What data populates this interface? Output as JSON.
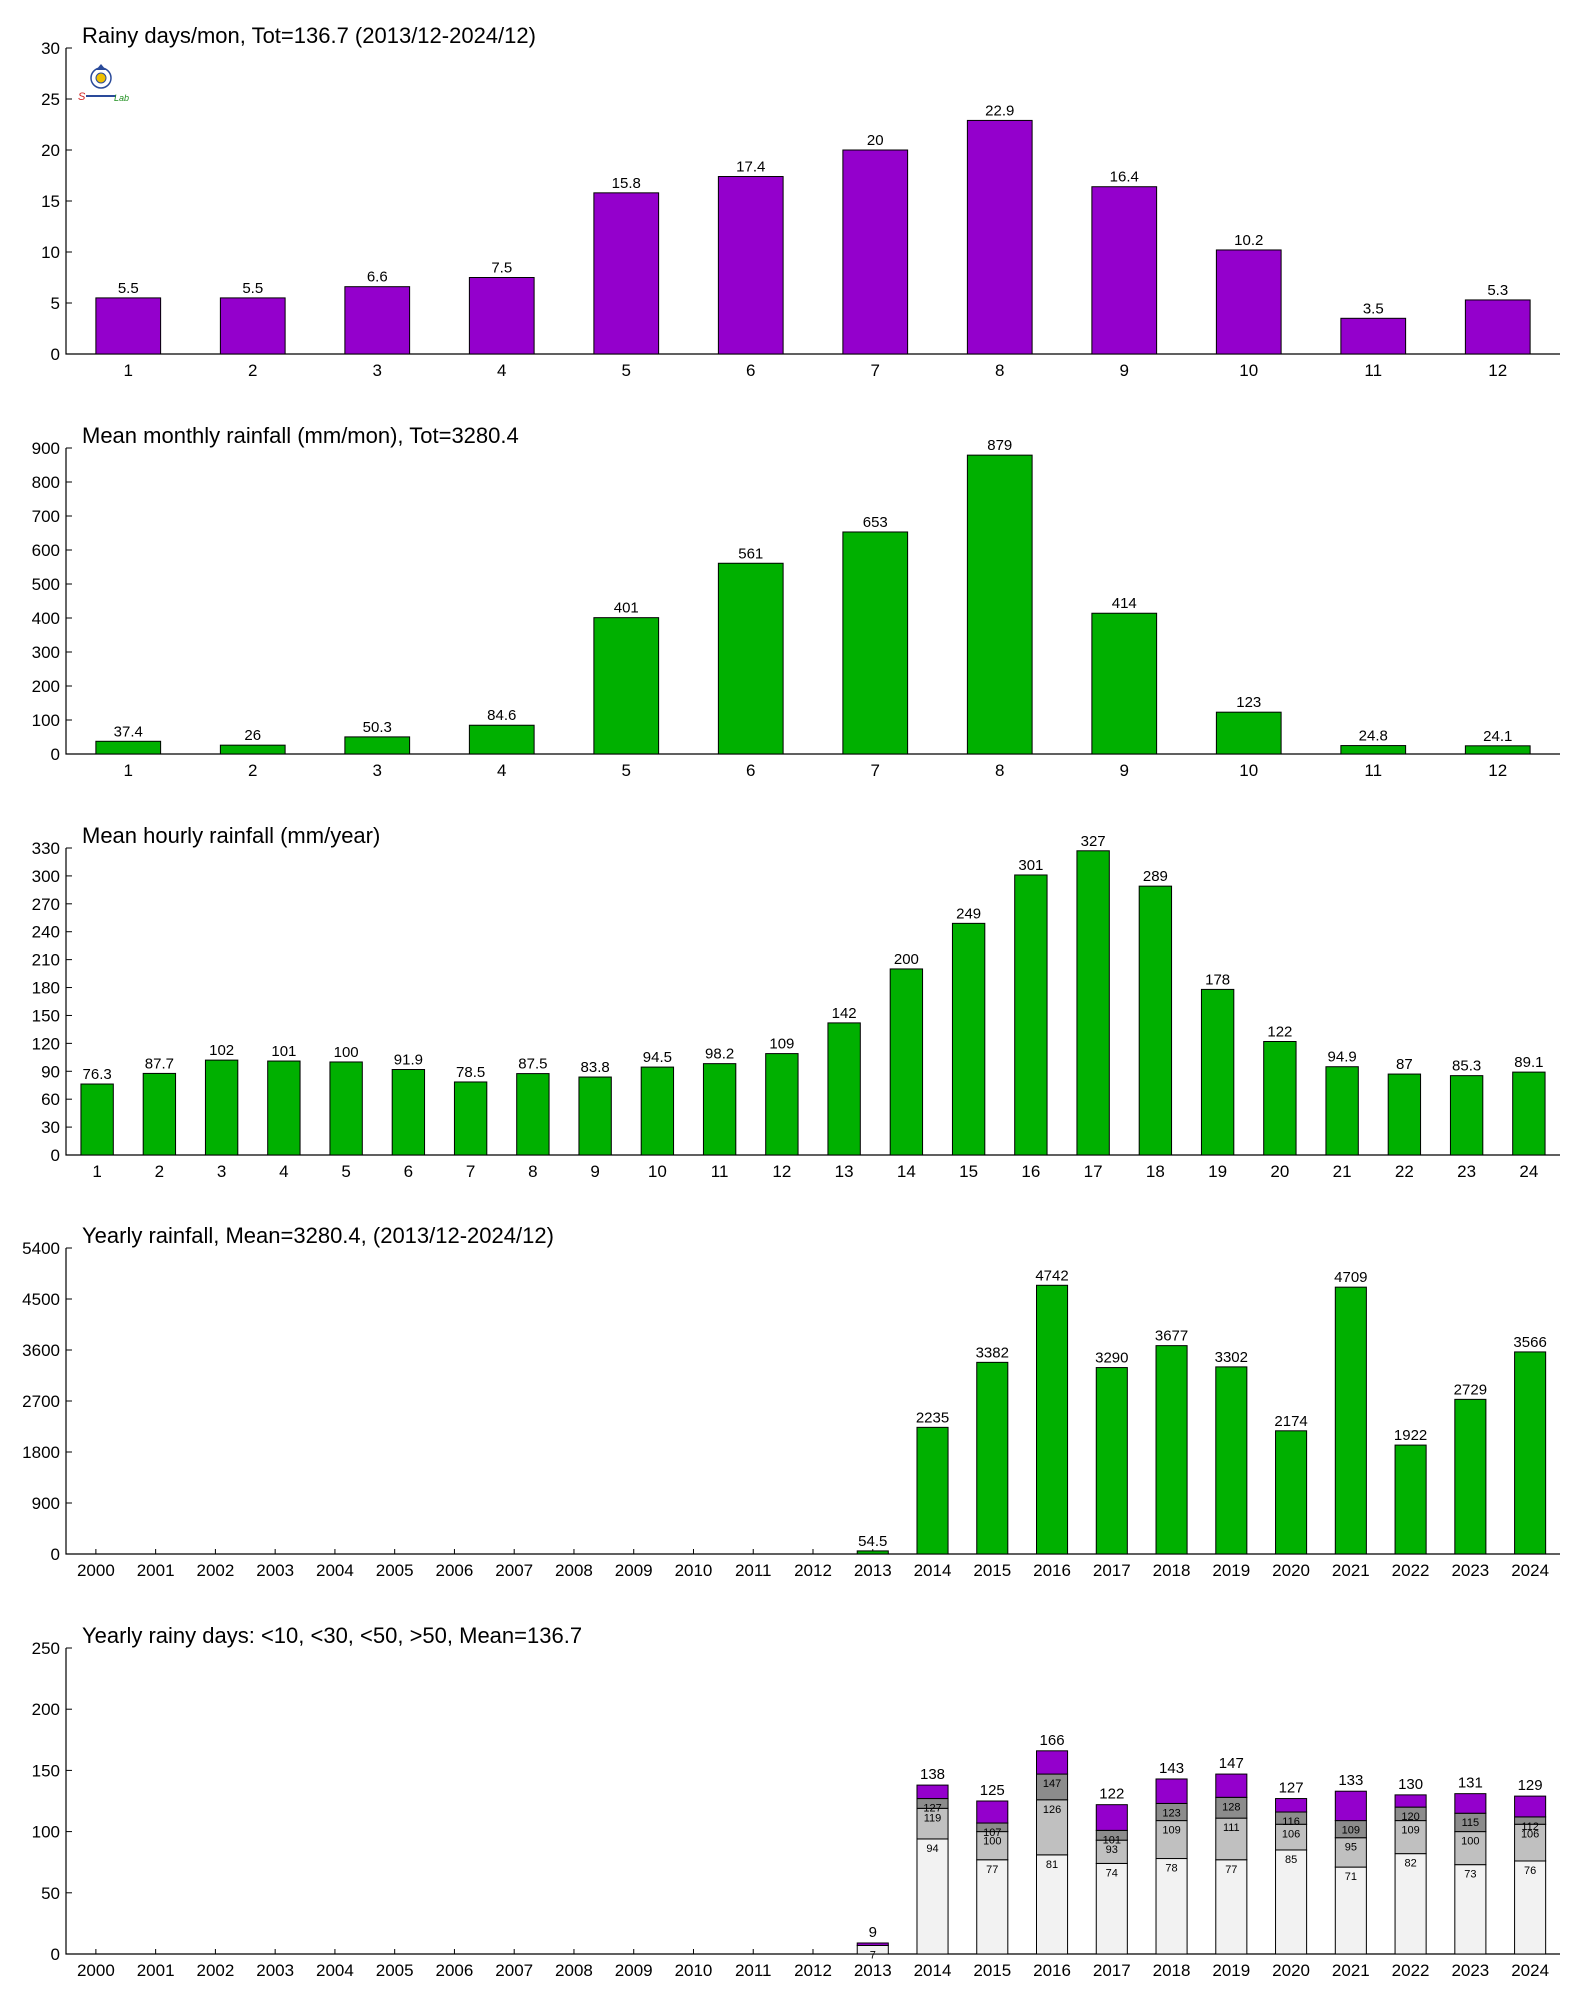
{
  "logo": {
    "text": "Sm Lab"
  },
  "colors": {
    "purple": "#9400cc",
    "green": "#00b000",
    "stack": [
      "#f2f2f2",
      "#c0c0c0",
      "#8c8c8c",
      "#9400cc"
    ]
  },
  "chart_data": [
    {
      "type": "bar",
      "title": "Rainy days/mon, Tot=136.7 (2013/12-2024/12)",
      "color": "#9400cc",
      "categories": [
        "1",
        "2",
        "3",
        "4",
        "5",
        "6",
        "7",
        "8",
        "9",
        "10",
        "11",
        "12"
      ],
      "values": [
        5.5,
        5.5,
        6.6,
        7.5,
        15.8,
        17.4,
        20,
        22.9,
        16.4,
        10.2,
        3.5,
        5.3
      ],
      "labels": [
        "5.5",
        "5.5",
        "6.6",
        "7.5",
        "15.8",
        "17.4",
        "20",
        "22.9",
        "16.4",
        "10.2",
        "3.5",
        "5.3"
      ],
      "yticks": [
        0,
        5,
        10,
        15,
        20,
        25,
        30
      ],
      "ylim": [
        0,
        30
      ]
    },
    {
      "type": "bar",
      "title": "Mean monthly rainfall (mm/mon), Tot=3280.4",
      "color": "#00b000",
      "categories": [
        "1",
        "2",
        "3",
        "4",
        "5",
        "6",
        "7",
        "8",
        "9",
        "10",
        "11",
        "12"
      ],
      "values": [
        37.4,
        26,
        50.3,
        84.6,
        401,
        561,
        653,
        879,
        414,
        123,
        24.8,
        24.1
      ],
      "labels": [
        "37.4",
        "26",
        "50.3",
        "84.6",
        "401",
        "561",
        "653",
        "879",
        "414",
        "123",
        "24.8",
        "24.1"
      ],
      "yticks": [
        0,
        100,
        200,
        300,
        400,
        500,
        600,
        700,
        800,
        900
      ],
      "ylim": [
        0,
        900
      ]
    },
    {
      "type": "bar",
      "title": "Mean hourly rainfall (mm/year)",
      "color": "#00b000",
      "categories": [
        "1",
        "2",
        "3",
        "4",
        "5",
        "6",
        "7",
        "8",
        "9",
        "10",
        "11",
        "12",
        "13",
        "14",
        "15",
        "16",
        "17",
        "18",
        "19",
        "20",
        "21",
        "22",
        "23",
        "24"
      ],
      "values": [
        76.3,
        87.7,
        102,
        101,
        100,
        91.9,
        78.5,
        87.5,
        83.8,
        94.5,
        98.2,
        109,
        142,
        200,
        249,
        301,
        327,
        289,
        178,
        122,
        94.9,
        87,
        85.3,
        89.1
      ],
      "labels": [
        "76.3",
        "87.7",
        "102",
        "101",
        "100",
        "91.9",
        "78.5",
        "87.5",
        "83.8",
        "94.5",
        "98.2",
        "109",
        "142",
        "200",
        "249",
        "301",
        "327",
        "289",
        "178",
        "122",
        "94.9",
        "87",
        "85.3",
        "89.1"
      ],
      "yticks": [
        0,
        30,
        60,
        90,
        120,
        150,
        180,
        210,
        240,
        270,
        300,
        330
      ],
      "ylim": [
        0,
        330
      ]
    },
    {
      "type": "bar",
      "title": "Yearly rainfall, Mean=3280.4, (2013/12-2024/12)",
      "color": "#00b000",
      "categories": [
        "2000",
        "2001",
        "2002",
        "2003",
        "2004",
        "2005",
        "2006",
        "2007",
        "2008",
        "2009",
        "2010",
        "2011",
        "2012",
        "2013",
        "2014",
        "2015",
        "2016",
        "2017",
        "2018",
        "2019",
        "2020",
        "2021",
        "2022",
        "2023",
        "2024"
      ],
      "values": [
        null,
        null,
        null,
        null,
        null,
        null,
        null,
        null,
        null,
        null,
        null,
        null,
        null,
        54.5,
        2235,
        3382,
        4742,
        3290,
        3677,
        3302,
        2174,
        4709,
        1922,
        2729,
        3566
      ],
      "labels": [
        "",
        "",
        "",
        "",
        "",
        "",
        "",
        "",
        "",
        "",
        "",
        "",
        "",
        "54.5",
        "2235",
        "3382",
        "4742",
        "3290",
        "3677",
        "3302",
        "2174",
        "4709",
        "1922",
        "2729",
        "3566"
      ],
      "yticks": [
        0,
        900,
        1800,
        2700,
        3600,
        4500,
        5400
      ],
      "ylim": [
        0,
        5400
      ]
    },
    {
      "type": "bar",
      "stacked": true,
      "title": "Yearly rainy days: <10, <30, <50, >50, Mean=136.7",
      "categories": [
        "2000",
        "2001",
        "2002",
        "2003",
        "2004",
        "2005",
        "2006",
        "2007",
        "2008",
        "2009",
        "2010",
        "2011",
        "2012",
        "2013",
        "2014",
        "2015",
        "2016",
        "2017",
        "2018",
        "2019",
        "2020",
        "2021",
        "2022",
        "2023",
        "2024"
      ],
      "stack_levels": [
        [
          null,
          null,
          null,
          null,
          null,
          null,
          null,
          null,
          null,
          null,
          null,
          null,
          null,
          7,
          94,
          77,
          81,
          74,
          78,
          77,
          85,
          71,
          82,
          73,
          76
        ],
        [
          null,
          null,
          null,
          null,
          null,
          null,
          null,
          null,
          null,
          null,
          null,
          null,
          null,
          7,
          119,
          100,
          126,
          93,
          109,
          111,
          106,
          95,
          109,
          100,
          106
        ],
        [
          null,
          null,
          null,
          null,
          null,
          null,
          null,
          null,
          null,
          null,
          null,
          null,
          null,
          7,
          127,
          107,
          147,
          101,
          123,
          128,
          116,
          109,
          120,
          115,
          112
        ],
        [
          null,
          null,
          null,
          null,
          null,
          null,
          null,
          null,
          null,
          null,
          null,
          null,
          null,
          9,
          138,
          125,
          166,
          122,
          143,
          147,
          127,
          133,
          130,
          131,
          129
        ]
      ],
      "inner_labels": [
        [
          "",
          "",
          "",
          "",
          "",
          "",
          "",
          "",
          "",
          "",
          "",
          "",
          "",
          "7",
          "94",
          "77",
          "81",
          "74",
          "78",
          "77",
          "85",
          "71",
          "82",
          "73",
          "76"
        ],
        [
          "",
          "",
          "",
          "",
          "",
          "",
          "",
          "",
          "",
          "",
          "",
          "",
          "",
          "",
          "119",
          "100",
          "126",
          "93",
          "109",
          "111",
          "106",
          "95",
          "109",
          "100",
          "106"
        ],
        [
          "",
          "",
          "",
          "",
          "",
          "",
          "",
          "",
          "",
          "",
          "",
          "",
          "",
          "",
          "127",
          "107",
          "147",
          "101",
          "123",
          "128",
          "116",
          "109",
          "120",
          "115",
          "112"
        ]
      ],
      "totals": [
        "",
        "",
        "",
        "",
        "",
        "",
        "",
        "",
        "",
        "",
        "",
        "",
        "",
        "9",
        "138",
        "125",
        "166",
        "122",
        "143",
        "147",
        "127",
        "133",
        "130",
        "131",
        "129"
      ],
      "yticks": [
        0,
        50,
        100,
        150,
        200,
        250
      ],
      "ylim": [
        0,
        250
      ]
    }
  ]
}
